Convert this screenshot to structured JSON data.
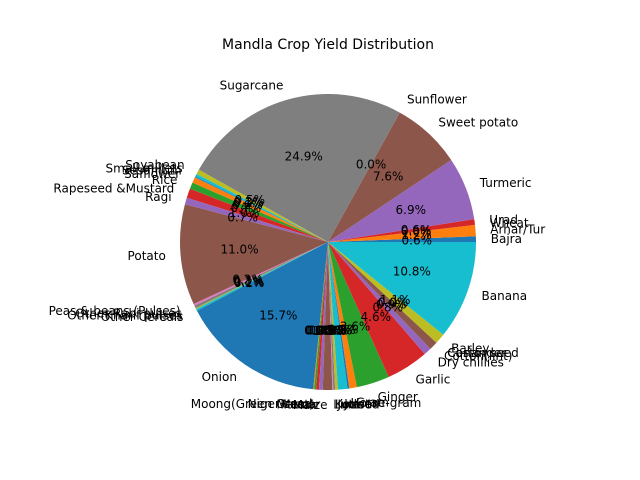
{
  "chart_data": {
    "type": "pie",
    "title": "Mandla Crop Yield Distribution",
    "start_angle_deg": 0,
    "direction": "counterclockwise",
    "label_format": "percent_1dp",
    "colors": [
      "#1f77b4",
      "#ff7f0e",
      "#2ca02c",
      "#d62728",
      "#9467bd",
      "#8c564b",
      "#e377c2",
      "#7f7f7f",
      "#bcbd22",
      "#17becf"
    ],
    "slices": [
      {
        "label": "Bajra",
        "value": 0.6
      },
      {
        "label": "Arhar/Tur",
        "value": 1.2
      },
      {
        "label": "Wheat",
        "value": 0.0
      },
      {
        "label": "Urad",
        "value": 0.6
      },
      {
        "label": "Turmeric",
        "value": 6.7
      },
      {
        "label": "Sweet potato",
        "value": 7.4
      },
      {
        "label": "Sunflower",
        "value": 0.0
      },
      {
        "label": "Sugarcane",
        "value": 24.3
      },
      {
        "label": "Soyabean",
        "value": 0.5
      },
      {
        "label": "Small millets",
        "value": 0.3
      },
      {
        "label": "Sesamum",
        "value": 0.1
      },
      {
        "label": "Safflower",
        "value": 0.6
      },
      {
        "label": "Rice",
        "value": 0.7
      },
      {
        "label": "Rapeseed &Mustard",
        "value": 1.0
      },
      {
        "label": "Ragi",
        "value": 0.7
      },
      {
        "label": "Potato",
        "value": 10.7
      },
      {
        "label": "Peas & beans (Pulses)",
        "value": 0.2
      },
      {
        "label": "Other Rabi pulses",
        "value": 0.3
      },
      {
        "label": "Other Kharif pulses",
        "value": 0.1
      },
      {
        "label": "Other Cereals",
        "value": 0.2
      },
      {
        "label": "Onion",
        "value": 15.3
      },
      {
        "label": "Niger seed",
        "value": 0.1
      },
      {
        "label": "Moong(Green Gram)",
        "value": 0.2
      },
      {
        "label": "Mesta",
        "value": 0.3
      },
      {
        "label": "Masoor",
        "value": 0.4
      },
      {
        "label": "Maize",
        "value": 1.0
      },
      {
        "label": "Linseed",
        "value": 0.1
      },
      {
        "label": "Kodo",
        "value": 0.2
      },
      {
        "label": "Jute",
        "value": 0.3
      },
      {
        "label": "Jowar",
        "value": 1.0
      },
      {
        "label": "Horse-gram",
        "value": 0.2
      },
      {
        "label": "Gram",
        "value": 0.8
      },
      {
        "label": "Ginger",
        "value": 3.5
      },
      {
        "label": "Garlic",
        "value": 4.5
      },
      {
        "label": "Dry chillies",
        "value": 0.8
      },
      {
        "label": "Cotton(lint)",
        "value": 0.9
      },
      {
        "label": "Coriander",
        "value": 0.0
      },
      {
        "label": "Castor seed",
        "value": 0.0
      },
      {
        "label": "Barley",
        "value": 1.1
      },
      {
        "label": "Banana",
        "value": 10.5
      }
    ]
  }
}
